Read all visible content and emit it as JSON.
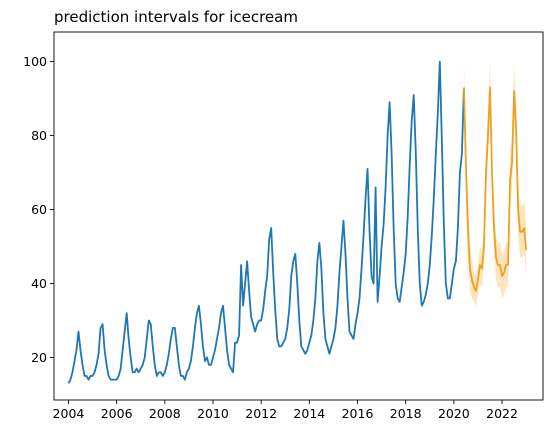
{
  "chart_data": {
    "type": "line",
    "title": "prediction intervals for icecream",
    "xlabel": "",
    "ylabel": "",
    "xlim": [
      2003.4,
      2023.7
    ],
    "ylim": [
      8.5,
      108
    ],
    "x_ticks": [
      2004,
      2006,
      2008,
      2010,
      2012,
      2014,
      2016,
      2018,
      2020,
      2022
    ],
    "x_tick_labels": [
      "2004",
      "2006",
      "2008",
      "2010",
      "2012",
      "2014",
      "2016",
      "2018",
      "2020",
      "2022"
    ],
    "y_ticks": [
      20,
      40,
      60,
      80,
      100
    ],
    "y_tick_labels": [
      "20",
      "40",
      "60",
      "80",
      "100"
    ],
    "grid": false,
    "legend": "none",
    "colors": {
      "history": "#1f77b4",
      "prediction": "#f0a020",
      "interval": "#fce0b0"
    },
    "series": [
      {
        "role": "history",
        "start_year": 2004,
        "step_months": 1,
        "values": [
          13,
          14,
          16,
          19,
          22,
          27,
          22,
          18,
          15,
          15,
          14,
          15,
          15,
          16,
          18,
          21,
          28,
          29,
          22,
          18,
          15,
          14,
          14,
          14,
          14,
          15,
          17,
          22,
          27,
          32,
          25,
          20,
          16,
          16,
          17,
          16,
          17,
          18,
          20,
          25,
          30,
          29,
          23,
          18,
          15,
          16,
          16,
          15,
          16,
          18,
          21,
          25,
          28,
          28,
          23,
          18,
          15,
          15,
          14,
          16,
          17,
          19,
          23,
          28,
          32,
          34,
          29,
          23,
          19,
          20,
          18,
          18,
          20,
          22,
          25,
          28,
          32,
          34,
          28,
          22,
          18,
          17,
          16,
          24,
          24,
          26,
          45,
          34,
          40,
          46,
          38,
          31,
          29,
          27,
          29,
          30,
          30,
          33,
          38,
          42,
          52,
          55,
          43,
          33,
          25,
          23,
          23,
          24,
          25,
          28,
          33,
          42,
          46,
          48,
          40,
          30,
          23,
          22,
          21,
          22,
          24,
          26,
          30,
          36,
          46,
          51,
          44,
          32,
          25,
          23,
          21,
          23,
          25,
          28,
          34,
          43,
          50,
          57,
          48,
          36,
          27,
          26,
          25,
          29,
          32,
          36,
          44,
          53,
          63,
          71,
          54,
          42,
          40,
          66,
          35,
          42,
          50,
          56,
          66,
          80,
          89,
          75,
          55,
          40,
          36,
          35,
          39,
          43,
          48,
          58,
          72,
          84,
          91,
          76,
          55,
          40,
          34,
          35,
          37,
          40,
          45,
          53,
          63,
          75,
          86,
          100,
          79,
          56,
          40,
          36,
          36,
          40,
          44,
          46,
          55,
          70,
          75,
          93
        ]
      },
      {
        "role": "prediction",
        "start_year": 2020.4167,
        "step_months": 1,
        "values": [
          93,
          72,
          55,
          44,
          41,
          39,
          38,
          41,
          45,
          44,
          50,
          70,
          80,
          93,
          70,
          55,
          47,
          45,
          45,
          42,
          43,
          45,
          45,
          68,
          73,
          92,
          82,
          60,
          54,
          54,
          55,
          49
        ],
        "lower": [
          86,
          65,
          48,
          38,
          36,
          35,
          34,
          37,
          40,
          39,
          45,
          64,
          74,
          86,
          64,
          49,
          41,
          39,
          39,
          36,
          37,
          39,
          39,
          61,
          66,
          85,
          75,
          53,
          47,
          47,
          48,
          42
        ],
        "upper": [
          100,
          79,
          62,
          51,
          46,
          43,
          42,
          45,
          50,
          49,
          55,
          76,
          86,
          100,
          76,
          61,
          53,
          51,
          51,
          48,
          49,
          51,
          51,
          75,
          80,
          99,
          89,
          67,
          61,
          61,
          62,
          56
        ]
      }
    ]
  }
}
